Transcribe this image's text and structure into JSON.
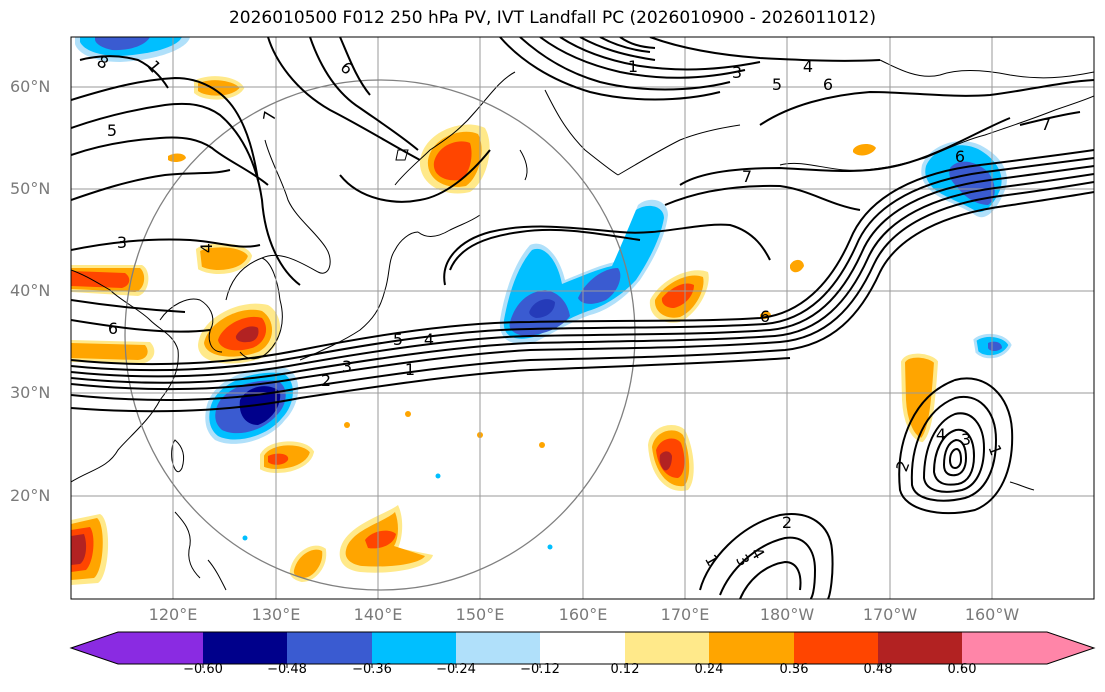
{
  "title": "2026010500 F012 250 hPa PV, IVT Landfall PC (2026010900 - 2026011012)",
  "lat_labels": [
    "60°N",
    "50°N",
    "40°N",
    "30°N",
    "20°N"
  ],
  "lon_labels": [
    "120°E",
    "130°E",
    "140°E",
    "150°E",
    "160°E",
    "170°E",
    "180°W",
    "170°W",
    "160°W"
  ],
  "colorbar": {
    "ticks": [
      "−0.60",
      "−0.48",
      "−0.36",
      "−0.24",
      "−0.12",
      "0.12",
      "0.24",
      "0.36",
      "0.48",
      "0.60"
    ],
    "colors": [
      "#8a2be2",
      "#00008b",
      "#3a5bd1",
      "#00bfff",
      "#b0e0fa",
      "#ffffff",
      "#ffe98a",
      "#ffa500",
      "#ff4500",
      "#b22222",
      "#ff85a8"
    ]
  },
  "contour_labels": {
    "c1": "6",
    "c2": "7",
    "c3": "5",
    "c4": "3",
    "c5": "4",
    "c6": "6",
    "c7": "5",
    "c8": "4",
    "c9": "3",
    "c10": "2",
    "c11": "1",
    "c12": "6",
    "c13": "3",
    "c14": "5",
    "c15": "4",
    "c16": "1",
    "c17": "6",
    "c18": "7",
    "c19": "7",
    "c20": "6",
    "c21": "2",
    "c22": "1",
    "c23": "3",
    "c24": "4",
    "c25": "2",
    "c26": "4",
    "c27": "3",
    "c28": "1",
    "c29": "8",
    "c30": "1"
  },
  "colors": {
    "land_line": "#000000",
    "contour": "#000000",
    "grid": "#9a9a9a",
    "circle": "#808080",
    "axis_label": "#7a7a7a"
  }
}
